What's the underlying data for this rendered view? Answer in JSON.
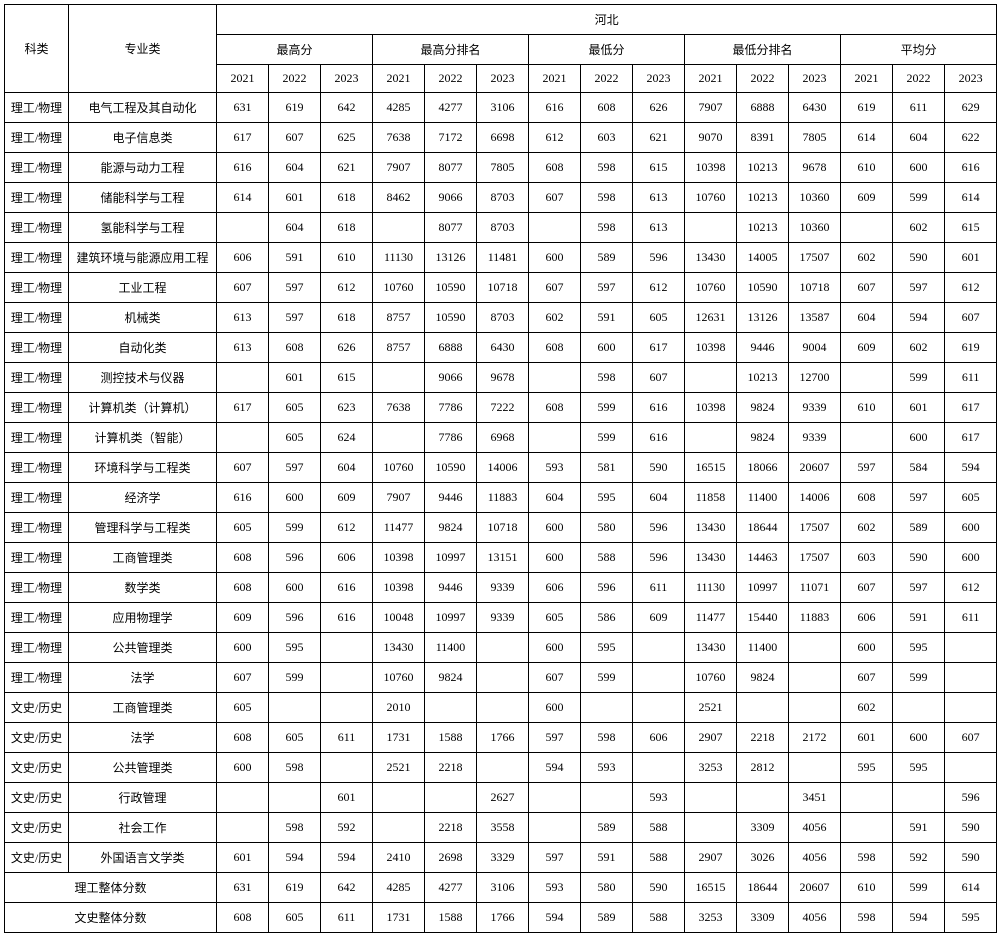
{
  "header": {
    "category": "科类",
    "major": "专业类",
    "province": "河北",
    "groups": [
      "最高分",
      "最高分排名",
      "最低分",
      "最低分排名",
      "平均分"
    ],
    "years": [
      "2021",
      "2022",
      "2023"
    ]
  },
  "rows": [
    {
      "cat": "理工/物理",
      "major": "电气工程及其自动化",
      "v": [
        "631",
        "619",
        "642",
        "4285",
        "4277",
        "3106",
        "616",
        "608",
        "626",
        "7907",
        "6888",
        "6430",
        "619",
        "611",
        "629"
      ]
    },
    {
      "cat": "理工/物理",
      "major": "电子信息类",
      "v": [
        "617",
        "607",
        "625",
        "7638",
        "7172",
        "6698",
        "612",
        "603",
        "621",
        "9070",
        "8391",
        "7805",
        "614",
        "604",
        "622"
      ]
    },
    {
      "cat": "理工/物理",
      "major": "能源与动力工程",
      "v": [
        "616",
        "604",
        "621",
        "7907",
        "8077",
        "7805",
        "608",
        "598",
        "615",
        "10398",
        "10213",
        "9678",
        "610",
        "600",
        "616"
      ]
    },
    {
      "cat": "理工/物理",
      "major": "储能科学与工程",
      "v": [
        "614",
        "601",
        "618",
        "8462",
        "9066",
        "8703",
        "607",
        "598",
        "613",
        "10760",
        "10213",
        "10360",
        "609",
        "599",
        "614"
      ]
    },
    {
      "cat": "理工/物理",
      "major": "氢能科学与工程",
      "v": [
        "",
        "604",
        "618",
        "",
        "8077",
        "8703",
        "",
        "598",
        "613",
        "",
        "10213",
        "10360",
        "",
        "602",
        "615"
      ]
    },
    {
      "cat": "理工/物理",
      "major": "建筑环境与能源应用工程",
      "v": [
        "606",
        "591",
        "610",
        "11130",
        "13126",
        "11481",
        "600",
        "589",
        "596",
        "13430",
        "14005",
        "17507",
        "602",
        "590",
        "601"
      ]
    },
    {
      "cat": "理工/物理",
      "major": "工业工程",
      "v": [
        "607",
        "597",
        "612",
        "10760",
        "10590",
        "10718",
        "607",
        "597",
        "612",
        "10760",
        "10590",
        "10718",
        "607",
        "597",
        "612"
      ]
    },
    {
      "cat": "理工/物理",
      "major": "机械类",
      "v": [
        "613",
        "597",
        "618",
        "8757",
        "10590",
        "8703",
        "602",
        "591",
        "605",
        "12631",
        "13126",
        "13587",
        "604",
        "594",
        "607"
      ]
    },
    {
      "cat": "理工/物理",
      "major": "自动化类",
      "v": [
        "613",
        "608",
        "626",
        "8757",
        "6888",
        "6430",
        "608",
        "600",
        "617",
        "10398",
        "9446",
        "9004",
        "609",
        "602",
        "619"
      ]
    },
    {
      "cat": "理工/物理",
      "major": "测控技术与仪器",
      "v": [
        "",
        "601",
        "615",
        "",
        "9066",
        "9678",
        "",
        "598",
        "607",
        "",
        "10213",
        "12700",
        "",
        "599",
        "611"
      ]
    },
    {
      "cat": "理工/物理",
      "major": "计算机类（计算机）",
      "v": [
        "617",
        "605",
        "623",
        "7638",
        "7786",
        "7222",
        "608",
        "599",
        "616",
        "10398",
        "9824",
        "9339",
        "610",
        "601",
        "617"
      ]
    },
    {
      "cat": "理工/物理",
      "major": "计算机类（智能）",
      "v": [
        "",
        "605",
        "624",
        "",
        "7786",
        "6968",
        "",
        "599",
        "616",
        "",
        "9824",
        "9339",
        "",
        "600",
        "617"
      ]
    },
    {
      "cat": "理工/物理",
      "major": "环境科学与工程类",
      "v": [
        "607",
        "597",
        "604",
        "10760",
        "10590",
        "14006",
        "593",
        "581",
        "590",
        "16515",
        "18066",
        "20607",
        "597",
        "584",
        "594"
      ]
    },
    {
      "cat": "理工/物理",
      "major": "经济学",
      "v": [
        "616",
        "600",
        "609",
        "7907",
        "9446",
        "11883",
        "604",
        "595",
        "604",
        "11858",
        "11400",
        "14006",
        "608",
        "597",
        "605"
      ]
    },
    {
      "cat": "理工/物理",
      "major": "管理科学与工程类",
      "v": [
        "605",
        "599",
        "612",
        "11477",
        "9824",
        "10718",
        "600",
        "580",
        "596",
        "13430",
        "18644",
        "17507",
        "602",
        "589",
        "600"
      ]
    },
    {
      "cat": "理工/物理",
      "major": "工商管理类",
      "v": [
        "608",
        "596",
        "606",
        "10398",
        "10997",
        "13151",
        "600",
        "588",
        "596",
        "13430",
        "14463",
        "17507",
        "603",
        "590",
        "600"
      ]
    },
    {
      "cat": "理工/物理",
      "major": "数学类",
      "v": [
        "608",
        "600",
        "616",
        "10398",
        "9446",
        "9339",
        "606",
        "596",
        "611",
        "11130",
        "10997",
        "11071",
        "607",
        "597",
        "612"
      ]
    },
    {
      "cat": "理工/物理",
      "major": "应用物理学",
      "v": [
        "609",
        "596",
        "616",
        "10048",
        "10997",
        "9339",
        "605",
        "586",
        "609",
        "11477",
        "15440",
        "11883",
        "606",
        "591",
        "611"
      ]
    },
    {
      "cat": "理工/物理",
      "major": "公共管理类",
      "v": [
        "600",
        "595",
        "",
        "13430",
        "11400",
        "",
        "600",
        "595",
        "",
        "13430",
        "11400",
        "",
        "600",
        "595",
        ""
      ]
    },
    {
      "cat": "理工/物理",
      "major": "法学",
      "v": [
        "607",
        "599",
        "",
        "10760",
        "9824",
        "",
        "607",
        "599",
        "",
        "10760",
        "9824",
        "",
        "607",
        "599",
        ""
      ]
    },
    {
      "cat": "文史/历史",
      "major": "工商管理类",
      "v": [
        "605",
        "",
        "",
        "2010",
        "",
        "",
        "600",
        "",
        "",
        "2521",
        "",
        "",
        "602",
        "",
        ""
      ]
    },
    {
      "cat": "文史/历史",
      "major": "法学",
      "v": [
        "608",
        "605",
        "611",
        "1731",
        "1588",
        "1766",
        "597",
        "598",
        "606",
        "2907",
        "2218",
        "2172",
        "601",
        "600",
        "607"
      ]
    },
    {
      "cat": "文史/历史",
      "major": "公共管理类",
      "v": [
        "600",
        "598",
        "",
        "2521",
        "2218",
        "",
        "594",
        "593",
        "",
        "3253",
        "2812",
        "",
        "595",
        "595",
        ""
      ]
    },
    {
      "cat": "文史/历史",
      "major": "行政管理",
      "v": [
        "",
        "",
        "601",
        "",
        "",
        "2627",
        "",
        "",
        "593",
        "",
        "",
        "3451",
        "",
        "",
        "596"
      ]
    },
    {
      "cat": "文史/历史",
      "major": "社会工作",
      "v": [
        "",
        "598",
        "592",
        "",
        "2218",
        "3558",
        "",
        "589",
        "588",
        "",
        "3309",
        "4056",
        "",
        "591",
        "590"
      ]
    },
    {
      "cat": "文史/历史",
      "major": "外国语言文学类",
      "v": [
        "601",
        "594",
        "594",
        "2410",
        "2698",
        "3329",
        "597",
        "591",
        "588",
        "2907",
        "3026",
        "4056",
        "598",
        "592",
        "590"
      ]
    }
  ],
  "summary": [
    {
      "label": "理工整体分数",
      "v": [
        "631",
        "619",
        "642",
        "4285",
        "4277",
        "3106",
        "593",
        "580",
        "590",
        "16515",
        "18644",
        "20607",
        "610",
        "599",
        "614"
      ]
    },
    {
      "label": "文史整体分数",
      "v": [
        "608",
        "605",
        "611",
        "1731",
        "1588",
        "1766",
        "594",
        "589",
        "588",
        "3253",
        "3309",
        "4056",
        "598",
        "594",
        "595"
      ]
    }
  ]
}
